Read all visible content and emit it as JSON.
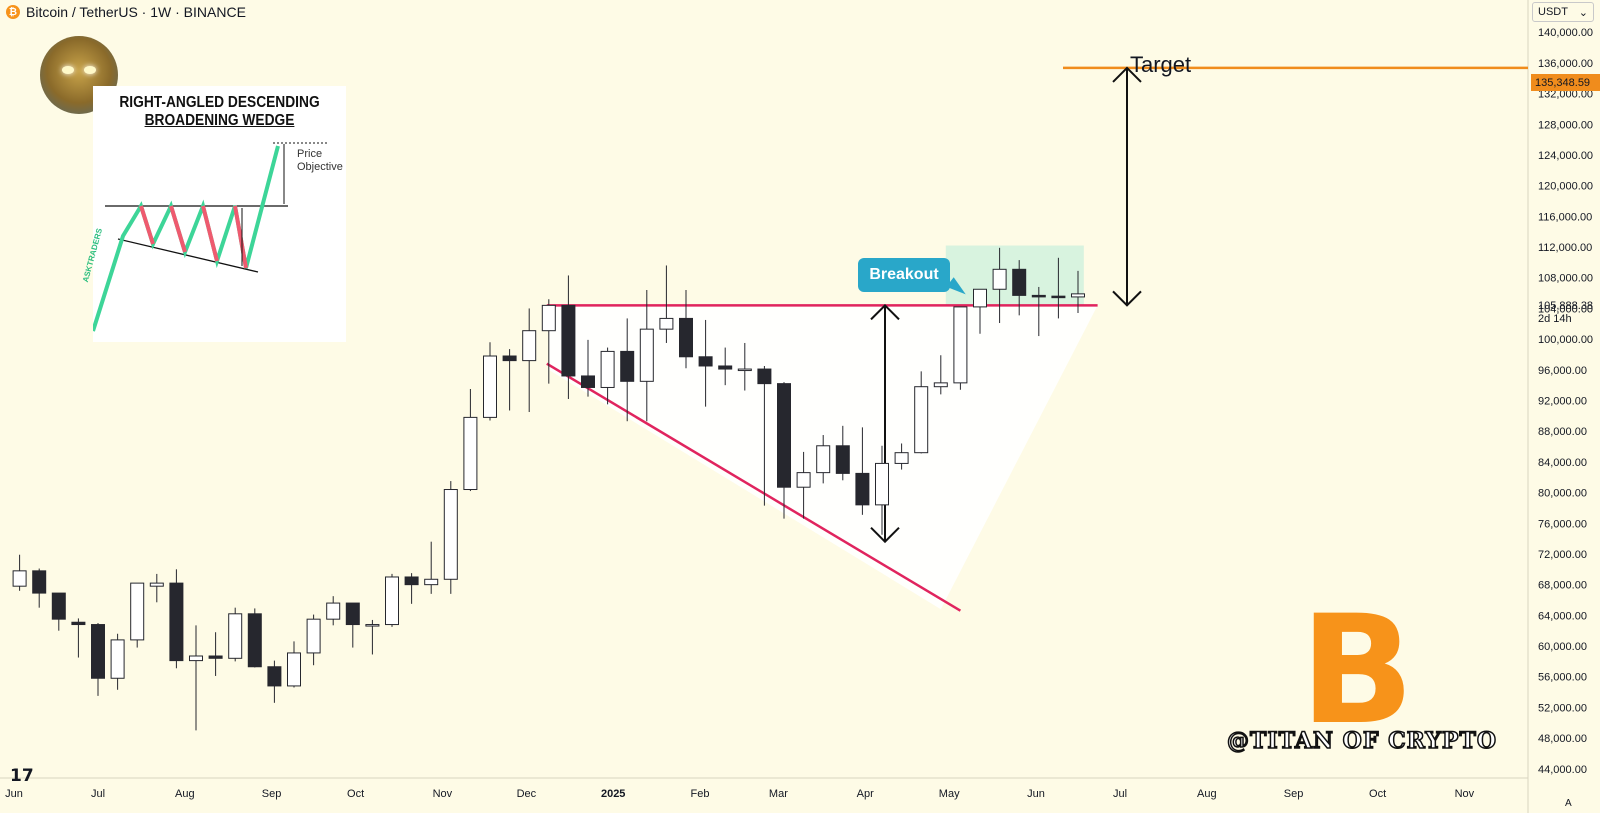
{
  "header": {
    "icon": "bitcoin-icon",
    "text": "Bitcoin / TetherUS · 1W · BINANCE"
  },
  "currency": {
    "label": "USDT",
    "icon": "chevron-down-icon"
  },
  "inset": {
    "title_line1": "RIGHT-ANGLED DESCENDING",
    "title_line2": "BROADENING WEDGE",
    "objective_line1": "Price",
    "objective_line2": "Objective",
    "brand": "ASKTRADERS",
    "colors": {
      "up": "#3dd598",
      "down": "#ef5a6f",
      "line": "#111111"
    }
  },
  "annotations": {
    "target_label": "Target",
    "breakout_label": "Breakout",
    "target_price": "135,348.59",
    "current_price": "105,888.38",
    "countdown": "2d 14h"
  },
  "watermark": "@TITAN OF CRYPTO",
  "tv_logo": "17",
  "auto_button": "A",
  "colors": {
    "background": "#fefbe6",
    "candle_up_fill": "#ffffff",
    "candle_down_fill": "#26272e",
    "candle_outline": "#26272e",
    "wedge_lines": "#e0245e",
    "target_line": "#f08c1c",
    "breakout": "#29a7c9",
    "consolidation_zone": "#c8f0dc",
    "bitcoin_orange": "#f7931a"
  },
  "chart_data": {
    "type": "candlestick",
    "symbol": "Bitcoin / TetherUS",
    "interval": "1W",
    "exchange": "BINANCE",
    "y_axis_labels": [
      "140,000.00",
      "136,000.00",
      "132,000.00",
      "128,000.00",
      "124,000.00",
      "120,000.00",
      "116,000.00",
      "112,000.00",
      "108,000.00",
      "104,000.00",
      "100,000.00",
      "96,000.00",
      "92,000.00",
      "88,000.00",
      "84,000.00",
      "80,000.00",
      "76,000.00",
      "72,000.00",
      "68,000.00",
      "64,000.00",
      "60,000.00",
      "56,000.00",
      "52,000.00",
      "48,000.00",
      "44,000.00"
    ],
    "y_range": [
      42800,
      144200
    ],
    "x_axis_labels": [
      "Jun",
      "Jul",
      "Aug",
      "Sep",
      "Oct",
      "Nov",
      "Dec",
      "2025",
      "Feb",
      "Mar",
      "Apr",
      "May",
      "Jun",
      "Jul",
      "Aug",
      "Sep",
      "Oct",
      "Nov"
    ],
    "candles": [
      {
        "date": "2024-06-03",
        "o": 67800,
        "h": 71900,
        "l": 67200,
        "c": 69800
      },
      {
        "date": "2024-06-10",
        "o": 69800,
        "h": 70100,
        "l": 65000,
        "c": 66900
      },
      {
        "date": "2024-06-17",
        "o": 66900,
        "h": 66900,
        "l": 62000,
        "c": 63500
      },
      {
        "date": "2024-06-24",
        "o": 63100,
        "h": 63600,
        "l": 58500,
        "c": 62800
      },
      {
        "date": "2024-07-01",
        "o": 62800,
        "h": 63000,
        "l": 53500,
        "c": 55800
      },
      {
        "date": "2024-07-08",
        "o": 55800,
        "h": 61600,
        "l": 54300,
        "c": 60800
      },
      {
        "date": "2024-07-15",
        "o": 60800,
        "h": 68200,
        "l": 59800,
        "c": 68200
      },
      {
        "date": "2024-07-22",
        "o": 67800,
        "h": 69400,
        "l": 65700,
        "c": 68200
      },
      {
        "date": "2024-07-29",
        "o": 68200,
        "h": 70000,
        "l": 57100,
        "c": 58100
      },
      {
        "date": "2024-08-05",
        "o": 58100,
        "h": 62700,
        "l": 49000,
        "c": 58700
      },
      {
        "date": "2024-08-12",
        "o": 58700,
        "h": 61800,
        "l": 56100,
        "c": 58400
      },
      {
        "date": "2024-08-19",
        "o": 58400,
        "h": 65000,
        "l": 58000,
        "c": 64200
      },
      {
        "date": "2024-08-26",
        "o": 64200,
        "h": 64900,
        "l": 57200,
        "c": 57300
      },
      {
        "date": "2024-09-02",
        "o": 57300,
        "h": 58100,
        "l": 52600,
        "c": 54800
      },
      {
        "date": "2024-09-09",
        "o": 54800,
        "h": 60600,
        "l": 54600,
        "c": 59100
      },
      {
        "date": "2024-09-16",
        "o": 59100,
        "h": 64100,
        "l": 57500,
        "c": 63500
      },
      {
        "date": "2024-09-23",
        "o": 63500,
        "h": 66500,
        "l": 62700,
        "c": 65600
      },
      {
        "date": "2024-09-30",
        "o": 65600,
        "h": 65600,
        "l": 59800,
        "c": 62800
      },
      {
        "date": "2024-10-07",
        "o": 62800,
        "h": 63400,
        "l": 58900,
        "c": 62800
      },
      {
        "date": "2024-10-14",
        "o": 62800,
        "h": 69400,
        "l": 62500,
        "c": 69000
      },
      {
        "date": "2024-10-21",
        "o": 69000,
        "h": 69500,
        "l": 65500,
        "c": 68000
      },
      {
        "date": "2024-10-28",
        "o": 68000,
        "h": 73600,
        "l": 66800,
        "c": 68700
      },
      {
        "date": "2024-11-04",
        "o": 68700,
        "h": 81500,
        "l": 66800,
        "c": 80400
      },
      {
        "date": "2024-11-11",
        "o": 80400,
        "h": 93500,
        "l": 80200,
        "c": 89800
      },
      {
        "date": "2024-11-18",
        "o": 89800,
        "h": 99600,
        "l": 89400,
        "c": 97800
      },
      {
        "date": "2024-11-25",
        "o": 97800,
        "h": 98700,
        "l": 90700,
        "c": 97200
      },
      {
        "date": "2024-12-02",
        "o": 97200,
        "h": 104000,
        "l": 90500,
        "c": 101100
      },
      {
        "date": "2024-12-09",
        "o": 101100,
        "h": 105200,
        "l": 94200,
        "c": 104400
      },
      {
        "date": "2024-12-16",
        "o": 104400,
        "h": 108300,
        "l": 92200,
        "c": 95200
      },
      {
        "date": "2024-12-23",
        "o": 95200,
        "h": 99900,
        "l": 92500,
        "c": 93700
      },
      {
        "date": "2024-12-30",
        "o": 93700,
        "h": 98900,
        "l": 91500,
        "c": 98400
      },
      {
        "date": "2025-01-06",
        "o": 98400,
        "h": 102700,
        "l": 89300,
        "c": 94500
      },
      {
        "date": "2025-01-13",
        "o": 94500,
        "h": 106400,
        "l": 89300,
        "c": 101300
      },
      {
        "date": "2025-01-20",
        "o": 101300,
        "h": 109600,
        "l": 99500,
        "c": 102700
      },
      {
        "date": "2025-01-27",
        "o": 102700,
        "h": 106400,
        "l": 96200,
        "c": 97700
      },
      {
        "date": "2025-02-03",
        "o": 97700,
        "h": 102500,
        "l": 91200,
        "c": 96500
      },
      {
        "date": "2025-02-10",
        "o": 96500,
        "h": 98900,
        "l": 94000,
        "c": 96100
      },
      {
        "date": "2025-02-17",
        "o": 96100,
        "h": 99500,
        "l": 93300,
        "c": 96100
      },
      {
        "date": "2025-02-24",
        "o": 96100,
        "h": 96500,
        "l": 78300,
        "c": 94200
      },
      {
        "date": "2025-03-03",
        "o": 94200,
        "h": 94400,
        "l": 76600,
        "c": 80700
      },
      {
        "date": "2025-03-10",
        "o": 80700,
        "h": 85300,
        "l": 76600,
        "c": 82600
      },
      {
        "date": "2025-03-17",
        "o": 82600,
        "h": 87500,
        "l": 81200,
        "c": 86100
      },
      {
        "date": "2025-03-24",
        "o": 86100,
        "h": 88700,
        "l": 81600,
        "c": 82500
      },
      {
        "date": "2025-03-31",
        "o": 82500,
        "h": 88500,
        "l": 77100,
        "c": 78400
      },
      {
        "date": "2025-04-07",
        "o": 78400,
        "h": 86100,
        "l": 74500,
        "c": 83800
      },
      {
        "date": "2025-04-14",
        "o": 83800,
        "h": 86400,
        "l": 83000,
        "c": 85200
      },
      {
        "date": "2025-04-21",
        "o": 85200,
        "h": 95800,
        "l": 85100,
        "c": 93800
      },
      {
        "date": "2025-04-28",
        "o": 93800,
        "h": 97900,
        "l": 92800,
        "c": 94300
      },
      {
        "date": "2025-05-05",
        "o": 94300,
        "h": 104100,
        "l": 93400,
        "c": 104200
      },
      {
        "date": "2025-05-12",
        "o": 104200,
        "h": 105800,
        "l": 100700,
        "c": 106500
      },
      {
        "date": "2025-05-19",
        "o": 106500,
        "h": 111900,
        "l": 102100,
        "c": 109100
      },
      {
        "date": "2025-05-26",
        "o": 109100,
        "h": 110300,
        "l": 103100,
        "c": 105700
      },
      {
        "date": "2025-06-02",
        "o": 105700,
        "h": 106800,
        "l": 100400,
        "c": 105600
      },
      {
        "date": "2025-06-09",
        "o": 105600,
        "h": 110600,
        "l": 102700,
        "c": 105500
      },
      {
        "date": "2025-06-16",
        "o": 105500,
        "h": 108900,
        "l": 103400,
        "c": 105900
      }
    ],
    "target_price": 135348.59,
    "current_price": 105888.38
  }
}
